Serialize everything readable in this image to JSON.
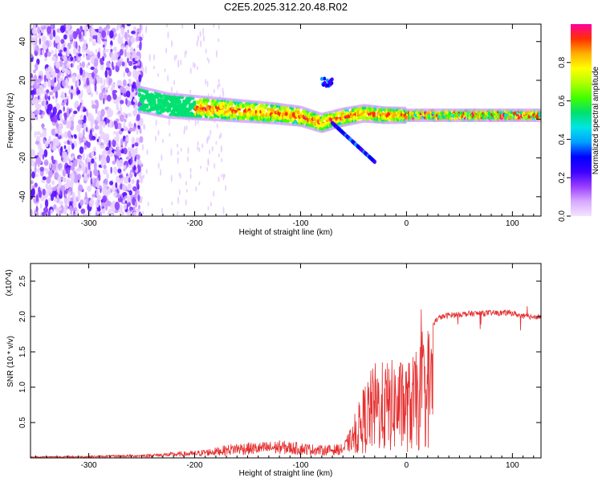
{
  "title": "C2E5.2025.312.20.48.R02",
  "chart_data": [
    {
      "type": "heatmap",
      "name": "spectrogram",
      "xlabel": "Height of straight line (km)",
      "ylabel": "Frequency (Hz)",
      "xlim": [
        -355,
        127
      ],
      "ylim": [
        -50,
        49
      ],
      "xticks": [
        -300,
        -200,
        -100,
        0,
        100
      ],
      "yticks": [
        -40,
        -20,
        0,
        20,
        40
      ],
      "xtick_labels": [
        "-300",
        "-200",
        "-100",
        "0",
        "100"
      ],
      "ytick_labels": [
        "-40",
        "-20",
        "0",
        "20",
        "40"
      ],
      "colorbar": {
        "label": "Normalized spectral amplitude",
        "range": [
          0,
          1
        ],
        "ticks": [
          0.0,
          0.2,
          0.4,
          0.6,
          0.8
        ],
        "tick_labels": [
          "0.0",
          "0.2",
          "0.4",
          "0.6",
          "0.8"
        ],
        "colors": [
          "#f4e4ff",
          "#d7a9ff",
          "#9a3dff",
          "#3b00ff",
          "#0000ff",
          "#00a0ff",
          "#00e5e5",
          "#00e070",
          "#40ff00",
          "#b0ff00",
          "#ffff00",
          "#ffb000",
          "#ff3000",
          "#ff00a0"
        ]
      },
      "band_center": [
        [
          -250,
          10
        ],
        [
          -225,
          7
        ],
        [
          -200,
          6
        ],
        [
          -175,
          5
        ],
        [
          -150,
          4
        ],
        [
          -125,
          3
        ],
        [
          -100,
          1.5
        ],
        [
          -80,
          -2
        ],
        [
          -60,
          1
        ],
        [
          -40,
          3
        ],
        [
          -20,
          2
        ],
        [
          0,
          2
        ],
        [
          30,
          2
        ],
        [
          60,
          2
        ],
        [
          90,
          2
        ],
        [
          120,
          2
        ]
      ],
      "noise_region": [
        -355,
        -250
      ]
    },
    {
      "type": "line",
      "name": "snr",
      "xlabel": "Height of straight line (km)",
      "ylabel": "SNR (10 * v/v)",
      "yscale_label": "(x10^4)",
      "xlim": [
        -355,
        127
      ],
      "ylim": [
        0,
        2.75
      ],
      "xticks": [
        -300,
        -200,
        -100,
        0,
        100
      ],
      "yticks": [
        0.5,
        1.0,
        1.5,
        2.0,
        2.5
      ],
      "xtick_labels": [
        "-300",
        "-200",
        "-100",
        "0",
        "100"
      ],
      "ytick_labels": [
        "0.5",
        "1.0",
        "1.5",
        "2.0",
        "2.5"
      ],
      "line_color": "#e53030",
      "envelope": [
        [
          -355,
          0.02
        ],
        [
          -300,
          0.03
        ],
        [
          -250,
          0.05
        ],
        [
          -200,
          0.1
        ],
        [
          -180,
          0.15
        ],
        [
          -160,
          0.22
        ],
        [
          -140,
          0.22
        ],
        [
          -120,
          0.25
        ],
        [
          -100,
          0.22
        ],
        [
          -80,
          0.18
        ],
        [
          -60,
          0.2
        ],
        [
          -50,
          0.5
        ],
        [
          -40,
          1.0
        ],
        [
          -30,
          1.3
        ],
        [
          -20,
          1.3
        ],
        [
          -10,
          1.35
        ],
        [
          0,
          1.3
        ],
        [
          10,
          1.45
        ],
        [
          20,
          1.8
        ],
        [
          30,
          1.98
        ],
        [
          40,
          2.02
        ],
        [
          60,
          2.04
        ],
        [
          80,
          2.05
        ],
        [
          100,
          2.05
        ],
        [
          110,
          2.0
        ],
        [
          127,
          2.0
        ]
      ]
    }
  ]
}
